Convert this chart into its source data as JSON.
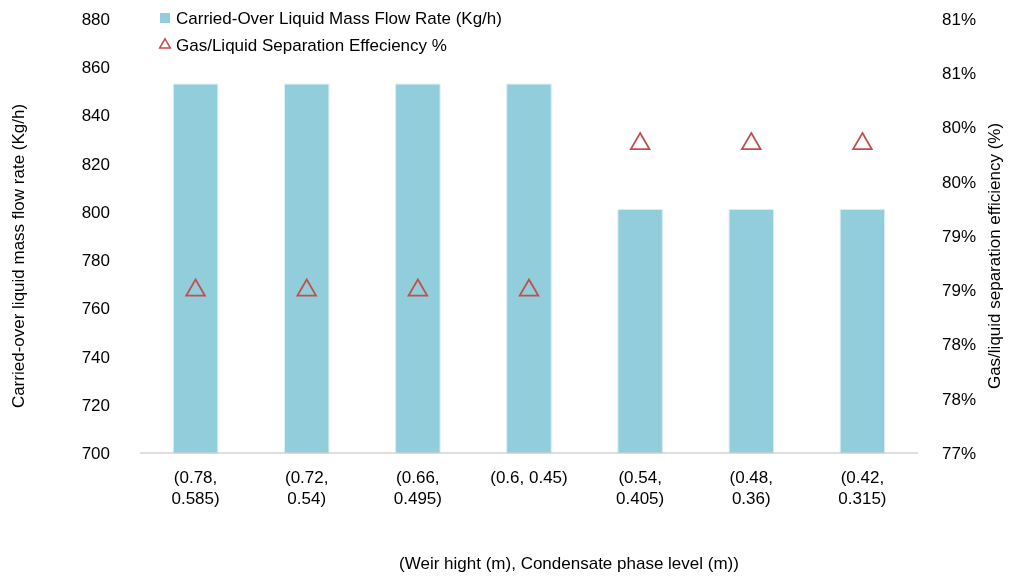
{
  "chart_data": {
    "type": "bar",
    "xlabel": "(Weir hight (m), Condensate phase level (m))",
    "ylabel": "Carried-over liquid mass flow rate (Kg/h)",
    "y2label": "Gas/liquid separation efficiency (%)",
    "categories": [
      "(0.78, 0.585)",
      "(0.72, 0.54)",
      "(0.66, 0.495)",
      "(0.6, 0.45)",
      "(0.54, 0.405)",
      "(0.48, 0.36)",
      "(0.42, 0.315)"
    ],
    "series": [
      {
        "name": "Carried-Over Liquid Mass Flow Rate (Kg/h)",
        "color": "#92cddc",
        "values": [
          853,
          853,
          853,
          853,
          801,
          801,
          801
        ]
      },
      {
        "name": "Gas/Liquid Separation Effeciency %",
        "type": "scatter",
        "axis": "y2",
        "marker": "triangle",
        "color": "#c0504d",
        "values": [
          78.5,
          78.5,
          78.5,
          78.5,
          79.85,
          79.85,
          79.85
        ]
      }
    ],
    "ylim": [
      700,
      880
    ],
    "yticks": [
      700,
      720,
      740,
      760,
      780,
      800,
      820,
      840,
      860,
      880
    ],
    "y2lim": [
      77,
      81
    ],
    "y2ticks": [
      {
        "value": 77,
        "label": "77%"
      },
      {
        "value": 77.5,
        "label": "78%"
      },
      {
        "value": 78,
        "label": "78%"
      },
      {
        "value": 78.5,
        "label": "79%"
      },
      {
        "value": 79,
        "label": "79%"
      },
      {
        "value": 79.5,
        "label": "80%"
      },
      {
        "value": 80,
        "label": "80%"
      },
      {
        "value": 80.5,
        "label": "81%"
      },
      {
        "value": 81,
        "label": "81%"
      }
    ],
    "grid": false,
    "legend": "top"
  }
}
